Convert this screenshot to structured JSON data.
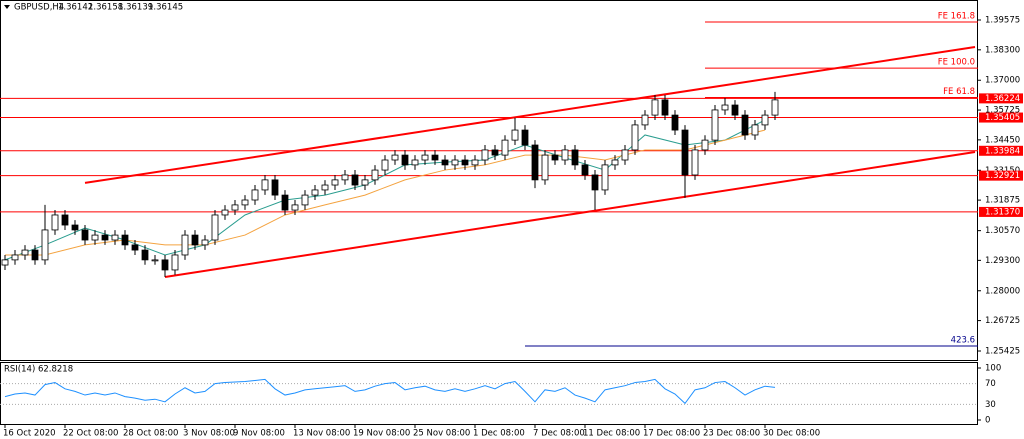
{
  "header": {
    "symbol": "GBPUSD,H4",
    "ohlc": [
      1.36142,
      1.36158,
      1.36139,
      1.36145
    ]
  },
  "chart_data": {
    "type": "candlestick",
    "categories": [
      "16 Oct 2020",
      null,
      null,
      null,
      null,
      null,
      "22 Oct 08:00",
      null,
      null,
      null,
      null,
      null,
      "28 Oct 08:00",
      null,
      null,
      null,
      null,
      null,
      "3 Nov 08:00",
      null,
      null,
      null,
      null,
      "9 Nov 08:00",
      null,
      null,
      null,
      null,
      null,
      "13 Nov 08:00",
      null,
      null,
      null,
      null,
      null,
      "19 Nov 08:00",
      null,
      null,
      null,
      null,
      null,
      "25 Nov 08:00",
      null,
      null,
      null,
      null,
      null,
      "1 Dec 08:00",
      null,
      null,
      null,
      null,
      null,
      "7 Dec 08:00",
      null,
      null,
      null,
      null,
      "11 Dec 08:00",
      null,
      null,
      null,
      null,
      null,
      "17 Dec 08:00",
      null,
      null,
      null,
      null,
      null,
      "23 Dec 08:00",
      null,
      null,
      null,
      null,
      null,
      "30 Dec 08:00",
      null
    ],
    "open": [
      1.291,
      1.2932,
      1.2953,
      1.2974,
      1.2932,
      1.306,
      1.3124,
      1.3081,
      1.306,
      1.3017,
      1.3038,
      1.3017,
      1.3038,
      1.2996,
      1.2974,
      1.2932,
      1.2932,
      1.2889,
      1.2953,
      1.3038,
      1.2996,
      1.3017,
      1.3124,
      1.3145,
      1.3167,
      1.3188,
      1.3231,
      1.3274,
      1.3209,
      1.3145,
      1.3167,
      1.3209,
      1.3231,
      1.3252,
      1.3274,
      1.3295,
      1.3252,
      1.3274,
      1.3316,
      1.3359,
      1.338,
      1.3338,
      1.3359,
      1.338,
      1.3359,
      1.3338,
      1.3359,
      1.3338,
      1.3359,
      1.3402,
      1.338,
      1.3444,
      1.3487,
      1.3423,
      1.3274,
      1.338,
      1.3359,
      1.3402,
      1.3338,
      1.3295,
      1.3231,
      1.3338,
      1.3359,
      1.3402,
      1.3509,
      1.3551,
      1.3616,
      1.3551,
      1.3487,
      1.3295,
      1.3402,
      1.3444,
      1.3573,
      1.3594,
      1.3551,
      1.3466,
      1.3509,
      1.3551
    ],
    "high": [
      1.2953,
      1.2974,
      1.2995,
      1.2995,
      1.3167,
      1.3145,
      1.3145,
      1.3102,
      1.3081,
      1.3059,
      1.3059,
      1.3059,
      1.3059,
      1.3017,
      1.2995,
      1.2953,
      1.2953,
      1.2974,
      1.3059,
      1.3059,
      1.3038,
      1.3145,
      1.3166,
      1.3188,
      1.3209,
      1.3252,
      1.3295,
      1.3295,
      1.323,
      1.3188,
      1.323,
      1.3252,
      1.3273,
      1.3295,
      1.3316,
      1.3316,
      1.3295,
      1.3337,
      1.338,
      1.3401,
      1.3401,
      1.338,
      1.3401,
      1.3401,
      1.338,
      1.338,
      1.338,
      1.338,
      1.3423,
      1.3423,
      1.3465,
      1.3539,
      1.3508,
      1.3444,
      1.3401,
      1.3401,
      1.3423,
      1.3423,
      1.3359,
      1.3316,
      1.3359,
      1.338,
      1.3423,
      1.353,
      1.3572,
      1.3637,
      1.3637,
      1.3572,
      1.3508,
      1.3423,
      1.3465,
      1.3594,
      1.3624,
      1.3615,
      1.3572,
      1.353,
      1.3572,
      1.365
    ],
    "low": [
      1.2889,
      1.2911,
      1.2932,
      1.2911,
      1.2911,
      1.3039,
      1.306,
      1.3039,
      1.2996,
      1.2996,
      1.2996,
      1.2996,
      1.2975,
      1.2953,
      1.2911,
      1.2911,
      1.2859,
      1.2868,
      1.2932,
      1.2975,
      1.2975,
      1.2996,
      1.3103,
      1.3124,
      1.3146,
      1.3167,
      1.321,
      1.3188,
      1.3124,
      1.3124,
      1.3146,
      1.3188,
      1.321,
      1.3231,
      1.3253,
      1.3231,
      1.3231,
      1.3253,
      1.3295,
      1.3338,
      1.3317,
      1.3317,
      1.3338,
      1.3338,
      1.3317,
      1.3317,
      1.3317,
      1.3317,
      1.3338,
      1.3359,
      1.3359,
      1.3423,
      1.3402,
      1.3239,
      1.3253,
      1.3338,
      1.3338,
      1.3317,
      1.3274,
      1.3145,
      1.321,
      1.3317,
      1.3338,
      1.3381,
      1.3488,
      1.353,
      1.353,
      1.3466,
      1.3197,
      1.3274,
      1.3381,
      1.3423,
      1.3552,
      1.353,
      1.3445,
      1.3445,
      1.3488,
      1.353
    ],
    "close": [
      1.2932,
      1.2953,
      1.2974,
      1.2932,
      1.306,
      1.3124,
      1.3081,
      1.306,
      1.3017,
      1.3038,
      1.3017,
      1.3038,
      1.2996,
      1.2974,
      1.2932,
      1.2932,
      1.2889,
      1.2953,
      1.3038,
      1.2996,
      1.3017,
      1.3124,
      1.3145,
      1.3167,
      1.3188,
      1.3231,
      1.3274,
      1.3209,
      1.3145,
      1.3167,
      1.3209,
      1.3231,
      1.3252,
      1.3274,
      1.3295,
      1.3252,
      1.3274,
      1.3316,
      1.3359,
      1.338,
      1.3338,
      1.3359,
      1.338,
      1.3359,
      1.3338,
      1.3359,
      1.3338,
      1.3359,
      1.3402,
      1.338,
      1.3444,
      1.3487,
      1.3423,
      1.3274,
      1.338,
      1.3359,
      1.3402,
      1.3338,
      1.3295,
      1.3231,
      1.3338,
      1.3359,
      1.3402,
      1.3509,
      1.3551,
      1.3616,
      1.3551,
      1.3487,
      1.3295,
      1.3402,
      1.3444,
      1.3573,
      1.3594,
      1.3551,
      1.3466,
      1.3509,
      1.3551,
      1.3616
    ],
    "up_color": "#ffffff",
    "down_color": "#000000",
    "wick_color": "#000000",
    "ylim": [
      1.2504,
      1.4043
    ],
    "yticks": [
      1.39575,
      {
        "value": 1.383,
        "label": "1.38300"
      },
      {
        "value": 1.37,
        "label": "1.37000"
      },
      1.35725,
      {
        "value": 1.3445,
        "label": "1.34450"
      },
      {
        "value": 1.3315,
        "label": "1.33150"
      },
      1.31875,
      {
        "value": 1.3057,
        "label": "1.30570"
      },
      {
        "value": 1.293,
        "label": "1.29300"
      },
      {
        "value": 1.28,
        "label": "1.28000"
      },
      1.26725,
      1.25425
    ],
    "moving_averages": [
      {
        "color": "#2a9d8f",
        "x": [
          0,
          4,
          8,
          12,
          16,
          20,
          24,
          28,
          32,
          36,
          40,
          44,
          48,
          52,
          56,
          60,
          64,
          68,
          72,
          76
        ],
        "values": [
          1.2932,
          1.2996,
          1.3068,
          1.3017,
          1.2953,
          1.2996,
          1.3124,
          1.3188,
          1.3209,
          1.3252,
          1.3338,
          1.335,
          1.3359,
          1.3423,
          1.3368,
          1.3316,
          1.3466,
          1.3423,
          1.3444,
          1.353
        ]
      },
      {
        "color": "#f4a340",
        "x": [
          0,
          4,
          8,
          12,
          16,
          20,
          24,
          28,
          32,
          36,
          40,
          44,
          48,
          52,
          56,
          60,
          64,
          68,
          72,
          76
        ],
        "values": [
          1.2953,
          1.2953,
          1.2996,
          1.3017,
          1.2996,
          1.2996,
          1.3038,
          1.3124,
          1.3167,
          1.3209,
          1.3274,
          1.3316,
          1.3338,
          1.338,
          1.338,
          1.3359,
          1.3402,
          1.3402,
          1.3444,
          1.3487
        ]
      }
    ],
    "levels": [
      1.36224,
      1.35405,
      1.33984,
      1.32921,
      {
        "value": 1.3137,
        "label": "1.31370"
      }
    ],
    "level_color": "#ff0000",
    "channel": {
      "color": "#ff0000",
      "lines": [
        [
          [
            8,
            1.3261
          ],
          [
            97,
            1.3842
          ]
        ],
        [
          [
            16,
            1.2859
          ],
          [
            97,
            1.3393
          ]
        ]
      ]
    },
    "fibo": [
      {
        "label": "FE 161.8",
        "value": 1.3949,
        "start": 70,
        "color": "#ff0000"
      },
      {
        "label": "FE 100.0",
        "value": 1.3752,
        "start": 70,
        "color": "#ff0000"
      },
      {
        "label": "FE 61.8",
        "value": 1.3626,
        "start": 70,
        "color": "#ff0000"
      },
      {
        "label": "423.6",
        "value": 1.2564,
        "start": 52,
        "color": "#00008b"
      }
    ]
  },
  "rsi": {
    "label": "RSI(14) 62.8218",
    "color": "#1e90ff",
    "ylim": [
      0,
      100
    ],
    "yticks": [
      0,
      30,
      70,
      100
    ],
    "values": [
      45,
      50,
      52,
      48,
      68,
      72,
      60,
      55,
      48,
      52,
      48,
      52,
      45,
      42,
      38,
      40,
      35,
      50,
      62,
      52,
      55,
      70,
      72,
      73,
      74,
      76,
      78,
      60,
      48,
      52,
      58,
      60,
      62,
      64,
      66,
      55,
      58,
      65,
      70,
      72,
      58,
      62,
      65,
      58,
      55,
      60,
      55,
      60,
      66,
      60,
      70,
      74,
      55,
      35,
      58,
      55,
      62,
      48,
      42,
      35,
      58,
      62,
      66,
      72,
      74,
      78,
      60,
      50,
      32,
      58,
      62,
      72,
      74,
      62,
      48,
      58,
      65,
      62.8218
    ]
  }
}
